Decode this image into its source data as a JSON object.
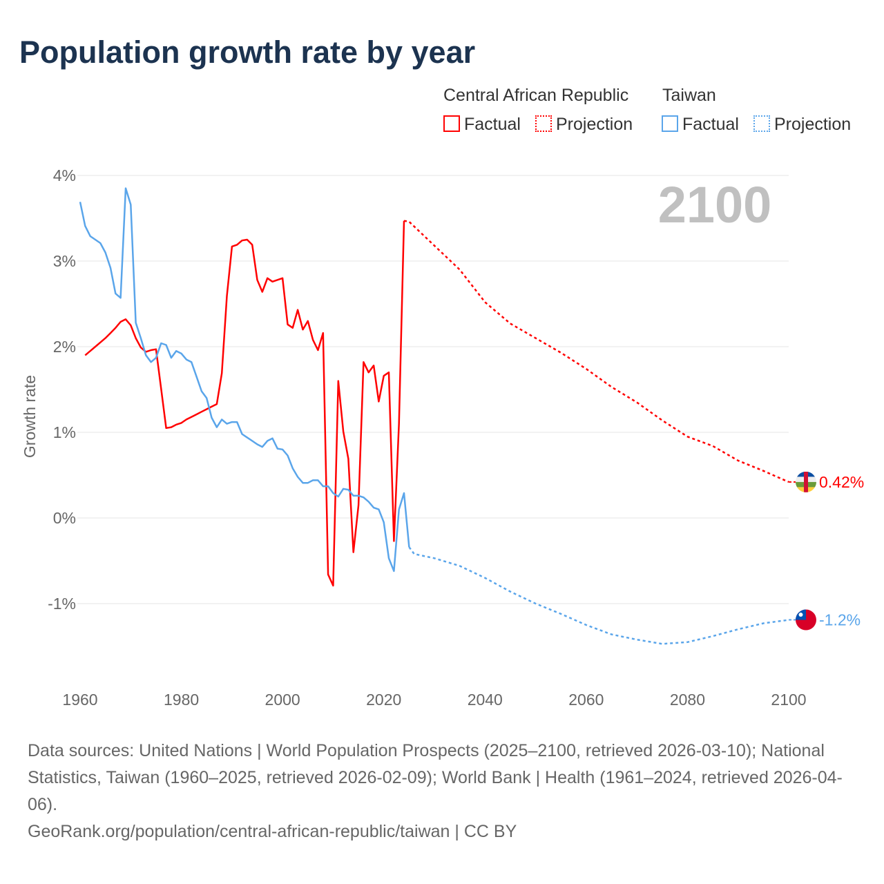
{
  "title": "Population growth rate by year",
  "legend": {
    "groups": [
      {
        "name": "Central African Republic",
        "factual": "Factual",
        "projection": "Projection",
        "color": "#ff0000"
      },
      {
        "name": "Taiwan",
        "factual": "Factual",
        "projection": "Projection",
        "color": "#5aa5ea"
      }
    ]
  },
  "footer": {
    "sources": "Data sources: United Nations | World Population Prospects (2025–2100, retrieved 2026-03-10); National Statistics, Taiwan (1960–2025, retrieved 2026-02-09); World Bank | Health (1961–2024, retrieved 2026-04-06).",
    "link": "GeoRank.org/population/central-african-republic/taiwan | CC BY"
  },
  "chart_data": {
    "type": "line",
    "title": "Population growth rate by year",
    "xlabel": "",
    "ylabel": "Growth rate",
    "year_label": "2100",
    "xlim": [
      1960,
      2100
    ],
    "ylim": [
      -1.5,
      4
    ],
    "xticks": [
      1960,
      1980,
      2000,
      2020,
      2040,
      2060,
      2080,
      2100
    ],
    "yticks": [
      {
        "v": 4,
        "label": "4%"
      },
      {
        "v": 3,
        "label": "3%"
      },
      {
        "v": 2,
        "label": "2%"
      },
      {
        "v": 1,
        "label": "1%"
      },
      {
        "v": 0,
        "label": "0%"
      },
      {
        "v": -1,
        "label": "-1%"
      }
    ],
    "series": [
      {
        "name": "Central African Republic",
        "color": "#ff0000",
        "end_label": "0.42%",
        "factual": {
          "start": 1961,
          "values": [
            1.9,
            1.95,
            2.0,
            2.05,
            2.1,
            2.16,
            2.22,
            2.29,
            2.32,
            2.25,
            2.1,
            1.99,
            1.94,
            1.96,
            1.97,
            1.51,
            1.05,
            1.06,
            1.09,
            1.11,
            1.15,
            1.18,
            1.21,
            1.24,
            1.27,
            1.3,
            1.33,
            1.69,
            2.59,
            3.17,
            3.19,
            3.24,
            3.25,
            3.19,
            2.78,
            2.64,
            2.8,
            2.76,
            2.78,
            2.8,
            2.26,
            2.22,
            2.43,
            2.2,
            2.3,
            2.08,
            1.96,
            2.16,
            -0.66,
            -0.79,
            1.6,
            1.01,
            0.69,
            -0.4,
            0.15,
            1.82,
            1.7,
            1.78,
            1.36,
            1.66,
            1.7,
            -0.27,
            1.1,
            3.47
          ]
        },
        "projection": {
          "x": [
            2024,
            2025,
            2030,
            2035,
            2040,
            2045,
            2050,
            2055,
            2060,
            2065,
            2070,
            2075,
            2080,
            2085,
            2090,
            2095,
            2100
          ],
          "values": [
            3.47,
            3.46,
            3.18,
            2.9,
            2.52,
            2.27,
            2.1,
            1.93,
            1.74,
            1.53,
            1.35,
            1.14,
            0.95,
            0.84,
            0.67,
            0.55,
            0.42
          ]
        }
      },
      {
        "name": "Taiwan",
        "color": "#5aa5ea",
        "end_label": "-1.2%",
        "factual": {
          "start": 1960,
          "values": [
            3.69,
            3.41,
            3.29,
            3.25,
            3.21,
            3.1,
            2.92,
            2.62,
            2.57,
            3.85,
            3.66,
            2.28,
            2.1,
            1.9,
            1.82,
            1.87,
            2.04,
            2.02,
            1.87,
            1.95,
            1.92,
            1.85,
            1.82,
            1.65,
            1.48,
            1.4,
            1.17,
            1.06,
            1.15,
            1.1,
            1.12,
            1.12,
            0.98,
            0.94,
            0.9,
            0.86,
            0.83,
            0.9,
            0.93,
            0.81,
            0.8,
            0.73,
            0.58,
            0.48,
            0.41,
            0.41,
            0.44,
            0.44,
            0.37,
            0.37,
            0.29,
            0.25,
            0.34,
            0.33,
            0.26,
            0.26,
            0.24,
            0.19,
            0.12,
            0.1,
            -0.05,
            -0.47,
            -0.62,
            0.1,
            0.29,
            -0.34
          ]
        },
        "projection": {
          "x": [
            2025,
            2026,
            2030,
            2035,
            2040,
            2045,
            2050,
            2055,
            2060,
            2065,
            2070,
            2075,
            2080,
            2085,
            2090,
            2095,
            2100
          ],
          "values": [
            -0.34,
            -0.42,
            -0.47,
            -0.56,
            -0.7,
            -0.86,
            -1.0,
            -1.12,
            -1.25,
            -1.36,
            -1.42,
            -1.47,
            -1.45,
            -1.38,
            -1.3,
            -1.23,
            -1.19
          ]
        }
      }
    ]
  }
}
